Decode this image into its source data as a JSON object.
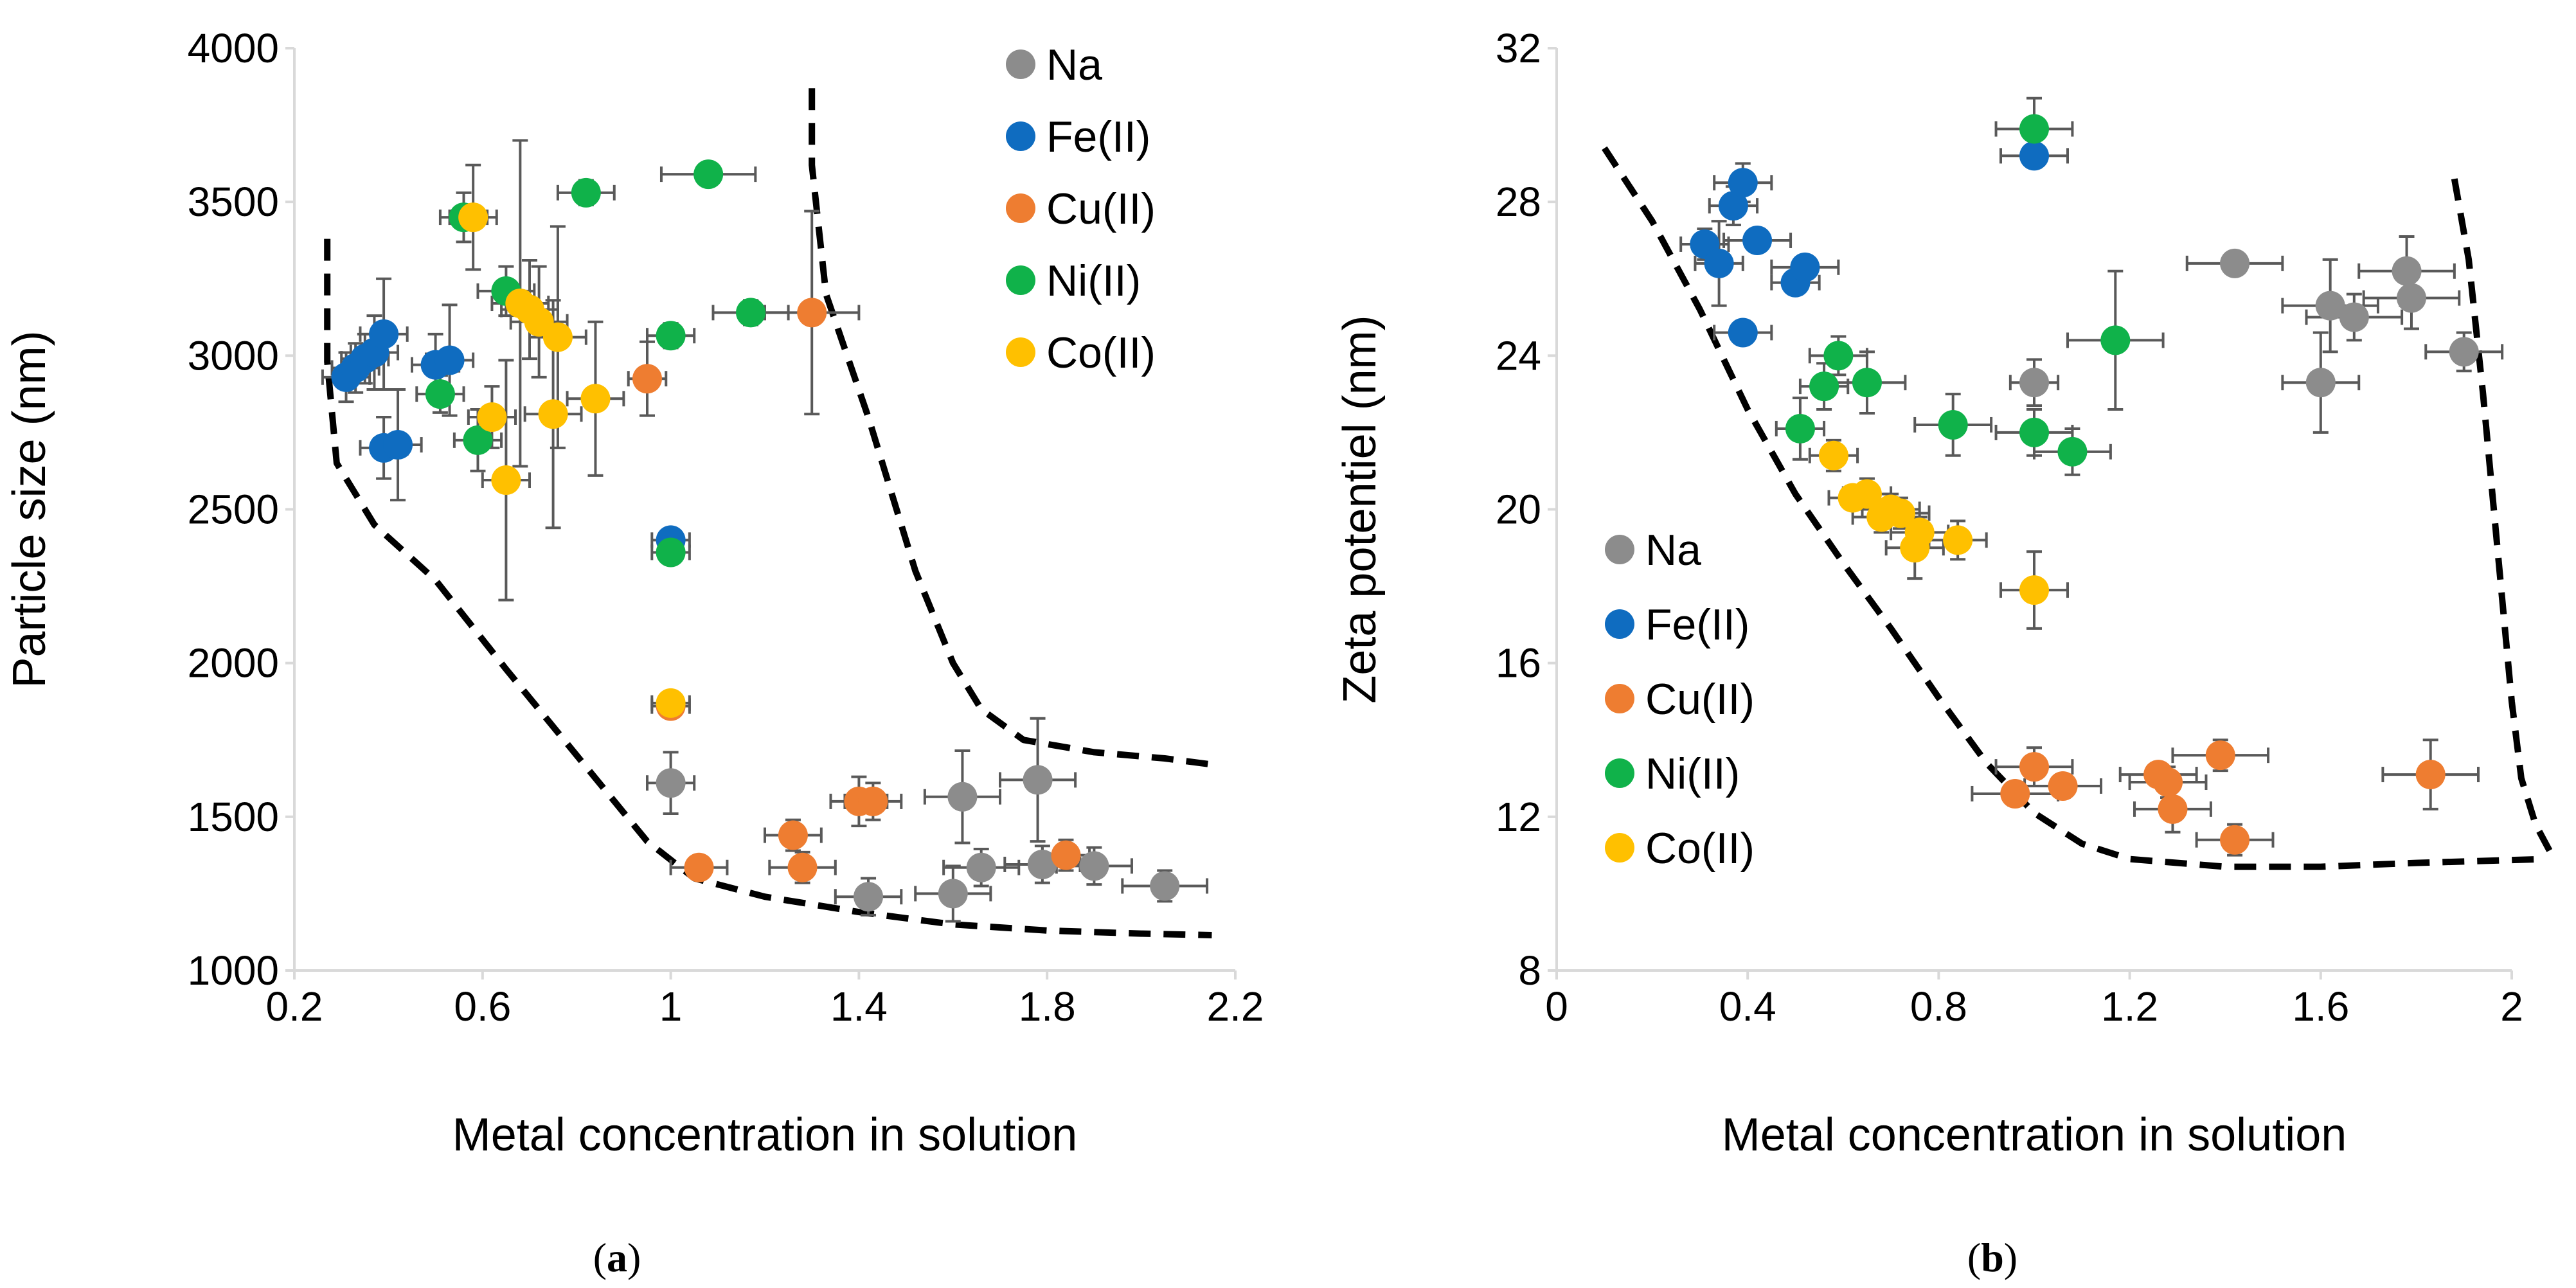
{
  "series_colors": {
    "Na": "#8c8c8c",
    "Fe(II)": "#0f6cc0",
    "Cu(II)": "#ee7d31",
    "Ni(II)": "#10b24a",
    "Co(II)": "#ffc000"
  },
  "chart_data": [
    {
      "type": "scatter",
      "panel_label": "a",
      "xlabel": "Metal concentration in solution",
      "ylabel": "Particle size (nm)",
      "xlim": [
        0.2,
        2.2
      ],
      "ylim": [
        1000,
        4000
      ],
      "xticks": [
        0.2,
        0.6,
        1,
        1.4,
        1.8,
        2.2
      ],
      "xtick_labels": [
        "0.2",
        "0.6",
        "1",
        "1.4",
        "1.8",
        "2.2"
      ],
      "yticks": [
        1000,
        1500,
        2000,
        2500,
        3000,
        3500,
        4000
      ],
      "ytick_labels": [
        "1000",
        "1500",
        "2000",
        "2500",
        "3000",
        "3500",
        "4000"
      ],
      "legend_position": "top-right",
      "series": [
        {
          "name": "Na",
          "points": [
            {
              "x": 1.0,
              "y": 1610,
              "xerr": 0.05,
              "yerr": 100
            },
            {
              "x": 1.42,
              "y": 1240,
              "xerr": 0.07,
              "yerr": 60
            },
            {
              "x": 1.6,
              "y": 1250,
              "xerr": 0.08,
              "yerr": 90
            },
            {
              "x": 1.62,
              "y": 1565,
              "xerr": 0.08,
              "yerr": 150
            },
            {
              "x": 1.66,
              "y": 1335,
              "xerr": 0.08,
              "yerr": 60
            },
            {
              "x": 1.78,
              "y": 1620,
              "xerr": 0.08,
              "yerr": 200
            },
            {
              "x": 1.79,
              "y": 1345,
              "xerr": 0.08,
              "yerr": 60
            },
            {
              "x": 1.9,
              "y": 1340,
              "xerr": 0.08,
              "yerr": 60
            },
            {
              "x": 2.05,
              "y": 1275,
              "xerr": 0.09,
              "yerr": 50
            }
          ]
        },
        {
          "name": "Fe(II)",
          "points": [
            {
              "x": 0.31,
              "y": 2930,
              "xerr": 0.05,
              "yerr": 80
            },
            {
              "x": 0.33,
              "y": 2960,
              "xerr": 0.05,
              "yerr": 80
            },
            {
              "x": 0.35,
              "y": 2990,
              "xerr": 0.05,
              "yerr": 80
            },
            {
              "x": 0.37,
              "y": 3010,
              "xerr": 0.05,
              "yerr": 120
            },
            {
              "x": 0.39,
              "y": 3070,
              "xerr": 0.05,
              "yerr": 180
            },
            {
              "x": 0.39,
              "y": 2700,
              "xerr": 0.05,
              "yerr": 100
            },
            {
              "x": 0.42,
              "y": 2710,
              "xerr": 0.05,
              "yerr": 180
            },
            {
              "x": 0.5,
              "y": 2970,
              "xerr": 0.05,
              "yerr": 100
            },
            {
              "x": 0.53,
              "y": 2985,
              "xerr": 0.05,
              "yerr": 180
            },
            {
              "x": 1.0,
              "y": 2400,
              "xerr": 0.04,
              "yerr": 30
            }
          ]
        },
        {
          "name": "Cu(II)",
          "points": [
            {
              "x": 0.95,
              "y": 2925,
              "xerr": 0.04,
              "yerr": 120
            },
            {
              "x": 1.0,
              "y": 1860,
              "xerr": 0.04,
              "yerr": 30
            },
            {
              "x": 1.06,
              "y": 1335,
              "xerr": 0.06,
              "yerr": 30
            },
            {
              "x": 1.26,
              "y": 1440,
              "xerr": 0.06,
              "yerr": 50
            },
            {
              "x": 1.28,
              "y": 1335,
              "xerr": 0.07,
              "yerr": 50
            },
            {
              "x": 1.3,
              "y": 3140,
              "xerr": 0.1,
              "yerr": 330
            },
            {
              "x": 1.4,
              "y": 1550,
              "xerr": 0.06,
              "yerr": 80
            },
            {
              "x": 1.43,
              "y": 1550,
              "xerr": 0.06,
              "yerr": 60
            },
            {
              "x": 1.84,
              "y": 1375,
              "xerr": 0.05,
              "yerr": 50
            }
          ]
        },
        {
          "name": "Ni(II)",
          "points": [
            {
              "x": 0.51,
              "y": 2875,
              "xerr": 0.05,
              "yerr": 60
            },
            {
              "x": 0.56,
              "y": 3450,
              "xerr": 0.05,
              "yerr": 80
            },
            {
              "x": 0.59,
              "y": 2725,
              "xerr": 0.05,
              "yerr": 100
            },
            {
              "x": 0.65,
              "y": 3210,
              "xerr": 0.06,
              "yerr": 80
            },
            {
              "x": 0.82,
              "y": 3530,
              "xerr": 0.06,
              "yerr": 40
            },
            {
              "x": 1.0,
              "y": 3065,
              "xerr": 0.05,
              "yerr": 40
            },
            {
              "x": 1.0,
              "y": 2360,
              "xerr": 0.04,
              "yerr": 30
            },
            {
              "x": 1.08,
              "y": 3590,
              "xerr": 0.1,
              "yerr": 30
            },
            {
              "x": 1.17,
              "y": 3140,
              "xerr": 0.08,
              "yerr": 40
            }
          ]
        },
        {
          "name": "Co(II)",
          "points": [
            {
              "x": 0.58,
              "y": 3450,
              "xerr": 0.05,
              "yerr": 170
            },
            {
              "x": 0.62,
              "y": 2800,
              "xerr": 0.05,
              "yerr": 100
            },
            {
              "x": 0.65,
              "y": 2595,
              "xerr": 0.05,
              "yerr": 390
            },
            {
              "x": 0.68,
              "y": 3170,
              "xerr": 0.06,
              "yerr": 530
            },
            {
              "x": 0.7,
              "y": 3150,
              "xerr": 0.06,
              "yerr": 160
            },
            {
              "x": 0.72,
              "y": 3110,
              "xerr": 0.06,
              "yerr": 180
            },
            {
              "x": 0.75,
              "y": 2810,
              "xerr": 0.06,
              "yerr": 370
            },
            {
              "x": 0.76,
              "y": 3060,
              "xerr": 0.06,
              "yerr": 360
            },
            {
              "x": 0.84,
              "y": 2860,
              "xerr": 0.06,
              "yerr": 250
            },
            {
              "x": 1.0,
              "y": 1870,
              "xerr": 0.04,
              "yerr": 30
            }
          ]
        }
      ],
      "boundary_curves": [
        {
          "points": [
            [
              0.27,
              3380
            ],
            [
              0.27,
              2980
            ],
            [
              0.29,
              2650
            ],
            [
              0.37,
              2450
            ],
            [
              0.5,
              2270
            ],
            [
              0.65,
              1980
            ],
            [
              0.8,
              1700
            ],
            [
              0.95,
              1420
            ],
            [
              1.05,
              1300
            ],
            [
              1.2,
              1240
            ],
            [
              1.4,
              1190
            ],
            [
              1.6,
              1150
            ],
            [
              1.8,
              1130
            ],
            [
              2.0,
              1120
            ],
            [
              2.15,
              1115
            ]
          ]
        },
        {
          "points": [
            [
              1.3,
              3870
            ],
            [
              1.3,
              3620
            ],
            [
              1.33,
              3200
            ],
            [
              1.42,
              2800
            ],
            [
              1.52,
              2300
            ],
            [
              1.6,
              2000
            ],
            [
              1.66,
              1850
            ],
            [
              1.75,
              1750
            ],
            [
              1.9,
              1710
            ],
            [
              2.05,
              1690
            ],
            [
              2.15,
              1670
            ]
          ]
        }
      ]
    },
    {
      "type": "scatter",
      "panel_label": "b",
      "xlabel": "Metal concentration in solution",
      "ylabel": "Zeta potentiel (nm)",
      "xlim": [
        0,
        2
      ],
      "ylim": [
        8,
        32
      ],
      "xticks": [
        0,
        0.4,
        0.8,
        1.2,
        1.6,
        2
      ],
      "xtick_labels": [
        "0",
        "0.4",
        "0.8",
        "1.2",
        "1.6",
        "2"
      ],
      "yticks": [
        8,
        12,
        16,
        20,
        24,
        28,
        32
      ],
      "ytick_labels": [
        "8",
        "12",
        "16",
        "20",
        "24",
        "28",
        "32"
      ],
      "legend_position": "center-left",
      "series": [
        {
          "name": "Na",
          "points": [
            {
              "x": 1.0,
              "y": 23.3,
              "xerr": 0.05,
              "yerr": 0.6
            },
            {
              "x": 1.42,
              "y": 26.4,
              "xerr": 0.1,
              "yerr": 0.2
            },
            {
              "x": 1.6,
              "y": 23.3,
              "xerr": 0.08,
              "yerr": 1.3
            },
            {
              "x": 1.62,
              "y": 25.3,
              "xerr": 0.1,
              "yerr": 1.2
            },
            {
              "x": 1.67,
              "y": 25.0,
              "xerr": 0.1,
              "yerr": 0.6
            },
            {
              "x": 1.78,
              "y": 26.2,
              "xerr": 0.1,
              "yerr": 0.9
            },
            {
              "x": 1.79,
              "y": 25.5,
              "xerr": 0.1,
              "yerr": 0.8
            },
            {
              "x": 1.9,
              "y": 24.1,
              "xerr": 0.08,
              "yerr": 0.5
            }
          ]
        },
        {
          "name": "Fe(II)",
          "points": [
            {
              "x": 0.31,
              "y": 26.9,
              "xerr": 0.05,
              "yerr": 0.4
            },
            {
              "x": 0.34,
              "y": 26.4,
              "xerr": 0.05,
              "yerr": 1.1
            },
            {
              "x": 0.37,
              "y": 27.9,
              "xerr": 0.05,
              "yerr": 0.5
            },
            {
              "x": 0.39,
              "y": 28.5,
              "xerr": 0.06,
              "yerr": 0.5
            },
            {
              "x": 0.39,
              "y": 24.6,
              "xerr": 0.06,
              "yerr": 0.3
            },
            {
              "x": 0.42,
              "y": 27.0,
              "xerr": 0.07,
              "yerr": 0.3
            },
            {
              "x": 0.5,
              "y": 25.9,
              "xerr": 0.05,
              "yerr": 0.3
            },
            {
              "x": 0.52,
              "y": 26.3,
              "xerr": 0.07,
              "yerr": 0.3
            },
            {
              "x": 1.0,
              "y": 29.2,
              "xerr": 0.07,
              "yerr": 0.3
            }
          ]
        },
        {
          "name": "Cu(II)",
          "points": [
            {
              "x": 0.96,
              "y": 12.6,
              "xerr": 0.09,
              "yerr": 0.3
            },
            {
              "x": 1.0,
              "y": 13.3,
              "xerr": 0.08,
              "yerr": 0.5
            },
            {
              "x": 1.06,
              "y": 12.8,
              "xerr": 0.08,
              "yerr": 0.3
            },
            {
              "x": 1.26,
              "y": 13.1,
              "xerr": 0.08,
              "yerr": 0.3
            },
            {
              "x": 1.28,
              "y": 12.9,
              "xerr": 0.08,
              "yerr": 0.4
            },
            {
              "x": 1.29,
              "y": 12.2,
              "xerr": 0.08,
              "yerr": 0.6
            },
            {
              "x": 1.39,
              "y": 13.6,
              "xerr": 0.1,
              "yerr": 0.4
            },
            {
              "x": 1.42,
              "y": 11.4,
              "xerr": 0.08,
              "yerr": 0.4
            },
            {
              "x": 1.83,
              "y": 13.1,
              "xerr": 0.1,
              "yerr": 0.9
            }
          ]
        },
        {
          "name": "Ni(II)",
          "points": [
            {
              "x": 0.51,
              "y": 22.1,
              "xerr": 0.05,
              "yerr": 0.8
            },
            {
              "x": 0.56,
              "y": 23.2,
              "xerr": 0.05,
              "yerr": 0.6
            },
            {
              "x": 0.59,
              "y": 24.0,
              "xerr": 0.06,
              "yerr": 0.5
            },
            {
              "x": 0.65,
              "y": 23.3,
              "xerr": 0.08,
              "yerr": 0.8
            },
            {
              "x": 0.83,
              "y": 22.2,
              "xerr": 0.08,
              "yerr": 0.8
            },
            {
              "x": 1.0,
              "y": 22.0,
              "xerr": 0.08,
              "yerr": 0.6
            },
            {
              "x": 1.0,
              "y": 29.9,
              "xerr": 0.08,
              "yerr": 0.8
            },
            {
              "x": 1.08,
              "y": 21.5,
              "xerr": 0.08,
              "yerr": 0.6
            },
            {
              "x": 1.17,
              "y": 24.4,
              "xerr": 0.1,
              "yerr": 1.8
            }
          ]
        },
        {
          "name": "Co(II)",
          "points": [
            {
              "x": 0.58,
              "y": 21.4,
              "xerr": 0.05,
              "yerr": 0.4
            },
            {
              "x": 0.62,
              "y": 20.3,
              "xerr": 0.05,
              "yerr": 0.3
            },
            {
              "x": 0.65,
              "y": 20.4,
              "xerr": 0.05,
              "yerr": 0.4
            },
            {
              "x": 0.68,
              "y": 19.8,
              "xerr": 0.06,
              "yerr": 0.4
            },
            {
              "x": 0.7,
              "y": 20.0,
              "xerr": 0.06,
              "yerr": 0.4
            },
            {
              "x": 0.72,
              "y": 19.9,
              "xerr": 0.06,
              "yerr": 0.4
            },
            {
              "x": 0.75,
              "y": 19.0,
              "xerr": 0.06,
              "yerr": 0.8
            },
            {
              "x": 0.76,
              "y": 19.4,
              "xerr": 0.06,
              "yerr": 0.4
            },
            {
              "x": 0.84,
              "y": 19.2,
              "xerr": 0.06,
              "yerr": 0.5
            },
            {
              "x": 1.0,
              "y": 17.9,
              "xerr": 0.07,
              "yerr": 1.0
            }
          ]
        }
      ],
      "boundary_curves": [
        {
          "points": [
            [
              0.1,
              29.4
            ],
            [
              0.2,
              27.5
            ],
            [
              0.3,
              25.2
            ],
            [
              0.4,
              22.6
            ],
            [
              0.5,
              20.4
            ],
            [
              0.6,
              18.6
            ],
            [
              0.7,
              16.9
            ],
            [
              0.8,
              15.1
            ],
            [
              0.9,
              13.4
            ],
            [
              1.0,
              12.1
            ],
            [
              1.1,
              11.3
            ],
            [
              1.2,
              10.9
            ],
            [
              1.4,
              10.7
            ],
            [
              1.6,
              10.7
            ],
            [
              1.8,
              10.8
            ],
            [
              2.07,
              10.9
            ]
          ]
        },
        {
          "points": [
            [
              1.88,
              28.6
            ],
            [
              1.91,
              26.5
            ],
            [
              1.94,
              23.0
            ],
            [
              1.97,
              19.0
            ],
            [
              2.0,
              15.0
            ],
            [
              2.02,
              13.0
            ],
            [
              2.05,
              11.8
            ],
            [
              2.08,
              11.1
            ]
          ]
        }
      ]
    }
  ]
}
